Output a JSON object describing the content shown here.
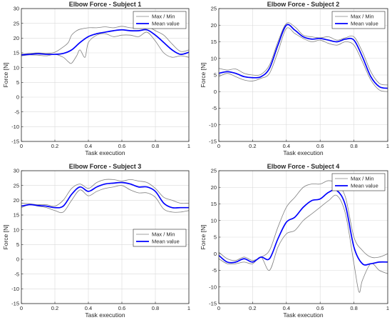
{
  "chart_data": [
    {
      "type": "line",
      "title": "Elbow Force - Subject 1",
      "xlabel": "Task execution",
      "ylabel": "Force [N]",
      "xlim": [
        0,
        1
      ],
      "ylim": [
        -15,
        30
      ],
      "xticks": [
        0,
        0.2,
        0.4,
        0.6,
        0.8,
        1
      ],
      "yticks": [
        -15,
        -10,
        -5,
        0,
        5,
        10,
        15,
        20,
        25,
        30
      ],
      "grid": true,
      "legend": {
        "placement": "top-right",
        "entries": [
          "Max / Min",
          "Mean value"
        ]
      },
      "series": [
        {
          "name": "Max / Min",
          "style": "thin-gray",
          "x": [
            0,
            0.05,
            0.1,
            0.15,
            0.2,
            0.25,
            0.28,
            0.3,
            0.33,
            0.35,
            0.4,
            0.45,
            0.5,
            0.55,
            0.6,
            0.65,
            0.7,
            0.75,
            0.8,
            0.85,
            0.9,
            0.95,
            1
          ],
          "y": [
            14.5,
            14.8,
            15,
            14.8,
            15.2,
            17,
            18.5,
            21,
            22.5,
            23,
            23.5,
            23.5,
            23.8,
            23.5,
            24,
            23.5,
            23.5,
            24,
            22.5,
            21,
            18,
            15.5,
            16
          ]
        },
        {
          "name": "",
          "style": "thin-gray",
          "x": [
            0,
            0.05,
            0.1,
            0.15,
            0.2,
            0.25,
            0.28,
            0.3,
            0.33,
            0.35,
            0.38,
            0.4,
            0.45,
            0.5,
            0.55,
            0.6,
            0.65,
            0.7,
            0.75,
            0.8,
            0.85,
            0.9,
            0.95,
            1
          ],
          "y": [
            14,
            14.3,
            14.2,
            14,
            14.5,
            13.5,
            12,
            11.5,
            14,
            16,
            13.5,
            18.5,
            21,
            21.5,
            20.5,
            21,
            21,
            20.5,
            22,
            19,
            15,
            13.5,
            14,
            13.5
          ]
        },
        {
          "name": "Mean value",
          "style": "thick-blue",
          "x": [
            0,
            0.05,
            0.1,
            0.15,
            0.2,
            0.25,
            0.3,
            0.35,
            0.4,
            0.45,
            0.5,
            0.55,
            0.6,
            0.65,
            0.7,
            0.75,
            0.8,
            0.85,
            0.9,
            0.95,
            1
          ],
          "y": [
            14.3,
            14.5,
            14.7,
            14.5,
            14.5,
            14.8,
            16,
            18.5,
            20.5,
            21.5,
            22,
            22.5,
            22.8,
            22.5,
            22.5,
            22.8,
            21,
            18.5,
            16,
            14.5,
            15.2
          ]
        }
      ]
    },
    {
      "type": "line",
      "title": "Elbow Force - Subject 2",
      "xlabel": "Task execution",
      "ylabel": "Force [N]",
      "xlim": [
        0,
        1
      ],
      "ylim": [
        -15,
        25
      ],
      "xticks": [
        0,
        0.2,
        0.4,
        0.6,
        0.8,
        1
      ],
      "yticks": [
        -15,
        -10,
        -5,
        0,
        5,
        10,
        15,
        20,
        25
      ],
      "grid": true,
      "legend": {
        "placement": "top-right",
        "entries": [
          "Max / Min",
          "Mean value"
        ]
      },
      "series": [
        {
          "name": "Max / Min",
          "style": "thin-gray",
          "x": [
            0,
            0.05,
            0.1,
            0.15,
            0.2,
            0.25,
            0.3,
            0.35,
            0.4,
            0.45,
            0.5,
            0.55,
            0.6,
            0.65,
            0.7,
            0.75,
            0.8,
            0.85,
            0.9,
            0.95,
            1
          ],
          "y": [
            7,
            6.5,
            6.8,
            5.5,
            5,
            5.2,
            8,
            15,
            20.5,
            19.5,
            17,
            16.5,
            16.2,
            16.5,
            15.5,
            16.2,
            16.5,
            12,
            6,
            2.5,
            2
          ]
        },
        {
          "name": "",
          "style": "thin-gray",
          "x": [
            0,
            0.05,
            0.1,
            0.15,
            0.2,
            0.25,
            0.3,
            0.35,
            0.4,
            0.45,
            0.5,
            0.55,
            0.6,
            0.65,
            0.7,
            0.75,
            0.8,
            0.85,
            0.9,
            0.95,
            1
          ],
          "y": [
            4.5,
            5.5,
            4.5,
            3.5,
            3.2,
            4,
            5.5,
            12,
            19,
            17.5,
            16,
            15,
            15.5,
            14.5,
            14,
            15,
            14,
            9,
            3.5,
            0.5,
            0
          ]
        },
        {
          "name": "Mean value",
          "style": "thick-blue",
          "x": [
            0,
            0.05,
            0.1,
            0.15,
            0.2,
            0.25,
            0.3,
            0.35,
            0.4,
            0.45,
            0.5,
            0.55,
            0.6,
            0.65,
            0.7,
            0.75,
            0.8,
            0.85,
            0.9,
            0.95,
            1
          ],
          "y": [
            5.5,
            6,
            5.5,
            4.5,
            4.2,
            4.5,
            7,
            14,
            20,
            18.5,
            16.5,
            15.8,
            16,
            15.5,
            15,
            15.8,
            15.5,
            10.5,
            4.5,
            1.5,
            1
          ]
        }
      ]
    },
    {
      "type": "line",
      "title": "Elbow Force - Subject 3",
      "xlabel": "Task execution",
      "ylabel": "Force [N]",
      "xlim": [
        0,
        1
      ],
      "ylim": [
        -15,
        30
      ],
      "xticks": [
        0,
        0.2,
        0.4,
        0.6,
        0.8,
        1
      ],
      "yticks": [
        -15,
        -10,
        -5,
        0,
        5,
        10,
        15,
        20,
        25,
        30
      ],
      "grid": true,
      "legend": {
        "placement": "center-right",
        "entries": [
          "Max / Min",
          "Mean value"
        ]
      },
      "series": [
        {
          "name": "Max / Min",
          "style": "thin-gray",
          "x": [
            0,
            0.05,
            0.1,
            0.15,
            0.2,
            0.25,
            0.3,
            0.35,
            0.4,
            0.45,
            0.5,
            0.55,
            0.6,
            0.65,
            0.7,
            0.75,
            0.8,
            0.85,
            0.9,
            0.95,
            1
          ],
          "y": [
            19,
            18.8,
            18.5,
            18.5,
            18,
            20,
            24,
            25.5,
            24,
            26,
            27,
            27,
            26.5,
            27,
            26.5,
            26,
            24,
            21,
            20,
            19,
            19
          ]
        },
        {
          "name": "",
          "style": "thin-gray",
          "x": [
            0,
            0.05,
            0.1,
            0.15,
            0.2,
            0.25,
            0.3,
            0.35,
            0.4,
            0.45,
            0.5,
            0.55,
            0.6,
            0.65,
            0.7,
            0.75,
            0.8,
            0.85,
            0.9,
            0.95,
            1
          ],
          "y": [
            17.5,
            18.5,
            18,
            17.5,
            16.5,
            16,
            20,
            23.5,
            21.5,
            23,
            24,
            24.5,
            25,
            23.5,
            22.5,
            22.5,
            21,
            17,
            16,
            16,
            16.5
          ]
        },
        {
          "name": "Mean value",
          "style": "thick-blue",
          "x": [
            0,
            0.05,
            0.1,
            0.15,
            0.2,
            0.25,
            0.3,
            0.35,
            0.4,
            0.45,
            0.5,
            0.55,
            0.6,
            0.65,
            0.7,
            0.75,
            0.8,
            0.85,
            0.9,
            0.95,
            1
          ],
          "y": [
            18,
            18.5,
            18.2,
            18,
            17.5,
            18,
            22,
            24.5,
            23,
            24.5,
            25.5,
            25.8,
            26,
            25.5,
            24.5,
            24.5,
            23,
            19,
            17.5,
            17.5,
            17.5
          ]
        }
      ]
    },
    {
      "type": "line",
      "title": "Elbow Force - Subject 4",
      "xlabel": "Task execution",
      "ylabel": "Force [N]",
      "xlim": [
        0,
        1
      ],
      "ylim": [
        -15,
        25
      ],
      "xticks": [
        0,
        0.2,
        0.4,
        0.6,
        0.8,
        1
      ],
      "yticks": [
        -15,
        -10,
        -5,
        0,
        5,
        10,
        15,
        20,
        25
      ],
      "grid": true,
      "legend": {
        "placement": "top-right",
        "entries": [
          "Max / Min",
          "Mean value"
        ]
      },
      "series": [
        {
          "name": "Max / Min",
          "style": "thin-gray",
          "x": [
            0,
            0.05,
            0.1,
            0.15,
            0.2,
            0.25,
            0.3,
            0.35,
            0.4,
            0.45,
            0.5,
            0.55,
            0.6,
            0.65,
            0.7,
            0.75,
            0.8,
            0.85,
            0.9,
            0.95,
            1
          ],
          "y": [
            0.5,
            -1.5,
            -2,
            -1,
            -2,
            -1,
            1,
            8,
            14,
            17,
            20,
            21,
            21,
            22,
            21,
            17,
            5,
            1,
            -1,
            -1,
            0
          ]
        },
        {
          "name": "",
          "style": "thin-gray",
          "x": [
            0,
            0.05,
            0.1,
            0.15,
            0.2,
            0.25,
            0.3,
            0.35,
            0.4,
            0.45,
            0.5,
            0.55,
            0.6,
            0.65,
            0.7,
            0.75,
            0.8,
            0.83,
            0.85,
            0.9,
            0.95,
            1
          ],
          "y": [
            -1.5,
            -3,
            -3,
            -2.5,
            -3,
            -1,
            -5,
            2,
            6,
            7,
            10,
            12,
            14,
            16,
            17.5,
            12,
            -3,
            -11.5,
            -8,
            -3,
            -5,
            -6
          ]
        },
        {
          "name": "Mean value",
          "style": "thick-blue",
          "x": [
            0,
            0.05,
            0.1,
            0.15,
            0.2,
            0.25,
            0.3,
            0.35,
            0.4,
            0.45,
            0.5,
            0.55,
            0.6,
            0.65,
            0.7,
            0.75,
            0.8,
            0.85,
            0.9,
            0.95,
            1
          ],
          "y": [
            -0.5,
            -2.5,
            -2.5,
            -1.5,
            -2.5,
            -1,
            -1.5,
            4.5,
            9.5,
            11,
            14,
            16,
            16.5,
            18.5,
            19,
            14.5,
            2,
            -3,
            -3,
            -2.5,
            -2.5
          ]
        }
      ]
    }
  ],
  "colors": {
    "mean": "#0000ff",
    "maxmin": "#808080",
    "grid": "#d9d9d9",
    "axis": "#262626"
  }
}
